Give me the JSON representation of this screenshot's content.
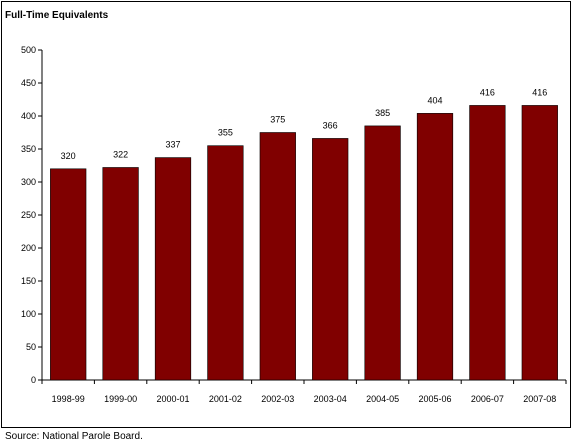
{
  "chart_data": {
    "type": "bar",
    "ylabel": "Full-Time Equivalents",
    "categories": [
      "1998-99",
      "1999-00",
      "2000-01",
      "2001-02",
      "2002-03",
      "2003-04",
      "2004-05",
      "2005-06",
      "2006-07",
      "2007-08"
    ],
    "values": [
      320,
      322,
      337,
      355,
      375,
      366,
      385,
      404,
      416,
      416
    ],
    "ylim": [
      0,
      500
    ],
    "yticks": [
      0,
      50,
      100,
      150,
      200,
      250,
      300,
      350,
      400,
      450,
      500
    ],
    "bar_color": "#800000",
    "grid": false,
    "legend": "none"
  },
  "source": "Source:  National Parole Board."
}
